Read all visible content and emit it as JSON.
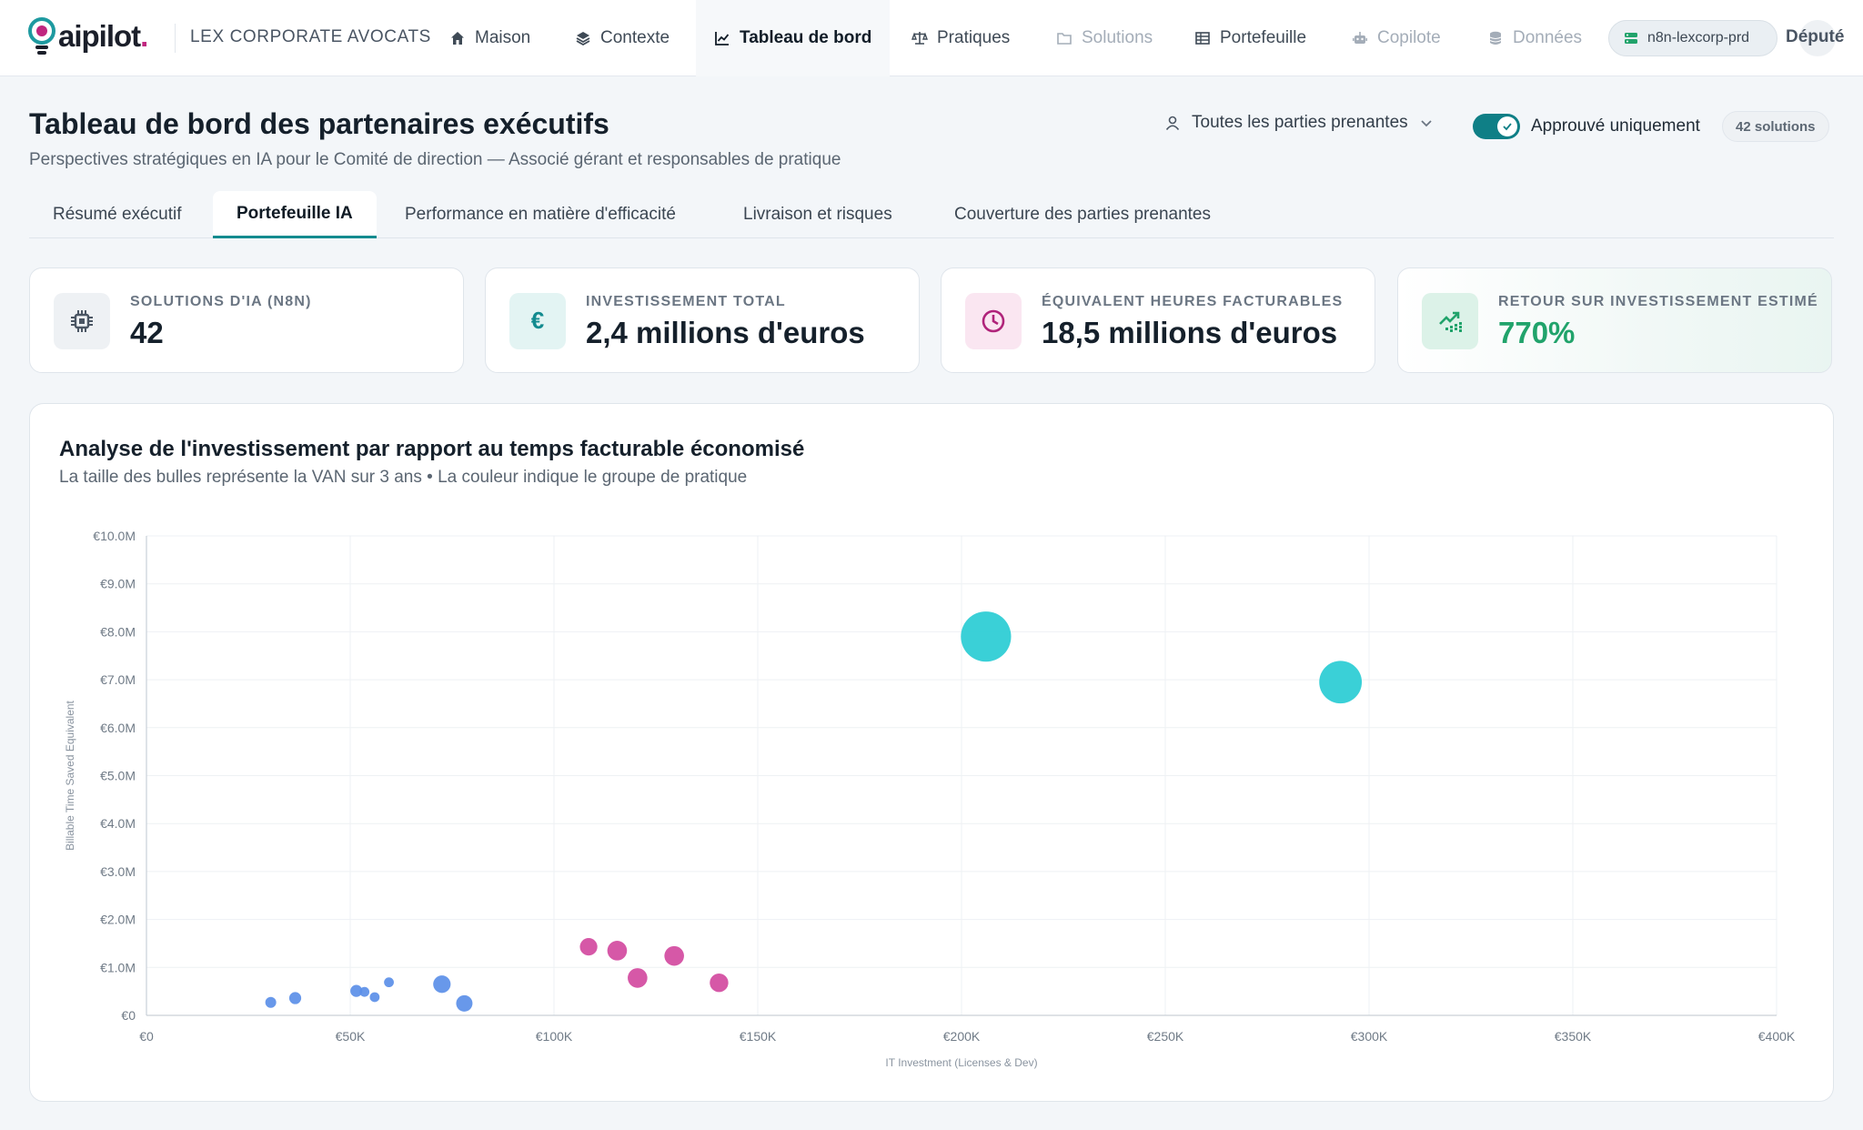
{
  "brand": {
    "logo_text": "aipilot",
    "logo_suffix": ".",
    "org_name": "LEX CORPORATE AVOCATS"
  },
  "nav": {
    "items": [
      {
        "label": "Maison",
        "icon": "home-icon"
      },
      {
        "label": "Contexte",
        "icon": "layers-icon"
      },
      {
        "label": "Tableau de bord",
        "icon": "chart-line-icon",
        "active": true
      },
      {
        "label": "Pratiques",
        "icon": "scale-icon"
      },
      {
        "label": "Solutions",
        "icon": "folder-icon",
        "muted": true
      },
      {
        "label": "Portefeuille",
        "icon": "table-icon"
      },
      {
        "label": "Copilote",
        "icon": "robot-icon",
        "muted": true
      },
      {
        "label": "Données",
        "icon": "database-icon",
        "muted": true
      }
    ],
    "env_label": "n8n-lexcorp-prd",
    "user_label": "Député"
  },
  "header": {
    "title": "Tableau de bord des partenaires exécutifs",
    "subtitle": "Perspectives stratégiques en IA pour le Comité de direction — Associé gérant et responsables de pratique",
    "stakeholder_filter": "Toutes les parties prenantes",
    "approved_only_label": "Approuvé uniquement",
    "approved_only": true,
    "solutions_count": "42 solutions"
  },
  "tabs": [
    {
      "label": "Résumé exécutif"
    },
    {
      "label": "Portefeuille IA",
      "active": true
    },
    {
      "label": "Performance en matière d'efficacité"
    },
    {
      "label": "Livraison et risques"
    },
    {
      "label": "Couverture des parties prenantes"
    }
  ],
  "kpis": [
    {
      "label": "SOLUTIONS D'IA (N8N)",
      "value": "42",
      "icon": "cpu-icon",
      "accent": "#4a5563"
    },
    {
      "label": "INVESTISSEMENT TOTAL",
      "value": "2,4 millions d'euros",
      "icon": "euro-icon",
      "accent": "#138b8f"
    },
    {
      "label": "ÉQUIVALENT HEURES FACTURABLES",
      "value": "18,5 millions d'euros",
      "icon": "clock-icon",
      "accent": "#b0237a"
    },
    {
      "label": "RETOUR SUR INVESTISSEMENT ESTIMÉ",
      "value": "770%",
      "icon": "trend-up-icon",
      "accent": "#21a36b"
    }
  ],
  "chart": {
    "title": "Analyse de l'investissement par rapport au temps facturable économisé",
    "subtitle": "La taille des bulles représente la VAN sur 3 ans • La couleur indique le groupe de pratique"
  },
  "chart_data": {
    "type": "scatter",
    "xlabel": "IT Investment (Licenses & Dev)",
    "ylabel": "Billable Time Saved Equivalent",
    "xlim": [
      0,
      400000
    ],
    "ylim": [
      0,
      10000000
    ],
    "x_ticks": [
      "€0",
      "€50K",
      "€100K",
      "€150K",
      "€200K",
      "€250K",
      "€300K",
      "€350K",
      "€400K"
    ],
    "y_ticks": [
      "€0",
      "€1.0M",
      "€2.0M",
      "€3.0M",
      "€4.0M",
      "€5.0M",
      "€6.0M",
      "€7.0M",
      "€8.0M",
      "€9.0M",
      "€10.0M"
    ],
    "grid": true,
    "series": [
      {
        "color": "#5b8fe8",
        "points": [
          {
            "x": 30500,
            "y": 270000,
            "size": 1.0
          },
          {
            "x": 36500,
            "y": 360000,
            "size": 1.1
          },
          {
            "x": 51500,
            "y": 510000,
            "size": 1.1
          },
          {
            "x": 53500,
            "y": 490000,
            "size": 0.9
          },
          {
            "x": 56000,
            "y": 380000,
            "size": 0.9
          },
          {
            "x": 59500,
            "y": 690000,
            "size": 0.9
          },
          {
            "x": 72500,
            "y": 650000,
            "size": 1.6
          },
          {
            "x": 78000,
            "y": 250000,
            "size": 1.5
          }
        ]
      },
      {
        "color": "#d24a9f",
        "points": [
          {
            "x": 108500,
            "y": 1430000,
            "size": 1.6
          },
          {
            "x": 115500,
            "y": 1350000,
            "size": 1.8
          },
          {
            "x": 120500,
            "y": 780000,
            "size": 1.8
          },
          {
            "x": 129500,
            "y": 1240000,
            "size": 1.8
          },
          {
            "x": 140500,
            "y": 680000,
            "size": 1.7
          }
        ]
      },
      {
        "color": "#29ccd4",
        "points": [
          {
            "x": 206000,
            "y": 7900000,
            "size": 4.6
          },
          {
            "x": 293000,
            "y": 6950000,
            "size": 3.9
          }
        ]
      }
    ]
  }
}
